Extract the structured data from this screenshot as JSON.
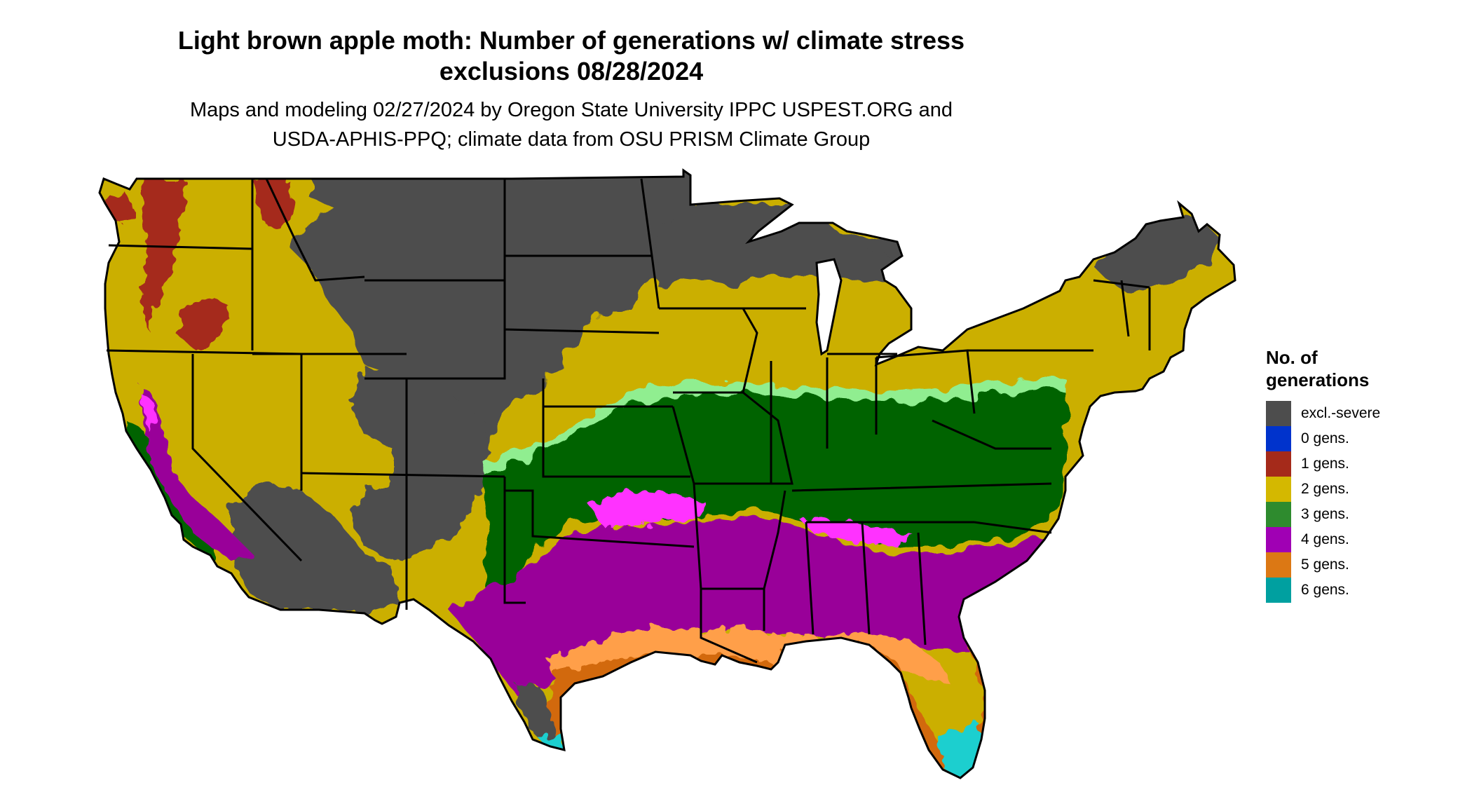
{
  "title": {
    "line1": "Light brown apple moth: Number of generations w/ climate stress",
    "line2": "exclusions 08/28/2024"
  },
  "subtitle": {
    "line1": "Maps and modeling 02/27/2024 by Oregon State University IPPC USPEST.ORG and",
    "line2": "USDA-APHIS-PPQ; climate data from OSU PRISM Climate Group"
  },
  "legend": {
    "title_line1": "No. of",
    "title_line2": "generations",
    "items": [
      {
        "label": "excl.-severe",
        "color": "#4d4d4d"
      },
      {
        "label": "0 gens.",
        "color": "#0033cc"
      },
      {
        "label": "1 gens.",
        "color": "#a52a1a"
      },
      {
        "label": "2 gens.",
        "color": "#d4b800"
      },
      {
        "label": "3 gens.",
        "color": "#2e8b2e"
      },
      {
        "label": "4 gens.",
        "color": "#a000b4"
      },
      {
        "label": "5 gens.",
        "color": "#dc7814"
      },
      {
        "label": "6 gens.",
        "color": "#00a0a0"
      }
    ]
  },
  "map_colors": {
    "excluded": "#4d4d4d",
    "gen1": "#a52a1a",
    "gen2": "#cbaf00",
    "gen3_light": "#90ee90",
    "gen3": "#006400",
    "gen4": "#990099",
    "gen4_light": "#ff33ff",
    "gen5": "#d2690a",
    "gen5_light": "#ff9f4a",
    "gen6": "#1ccfcf",
    "border": "#000000"
  }
}
